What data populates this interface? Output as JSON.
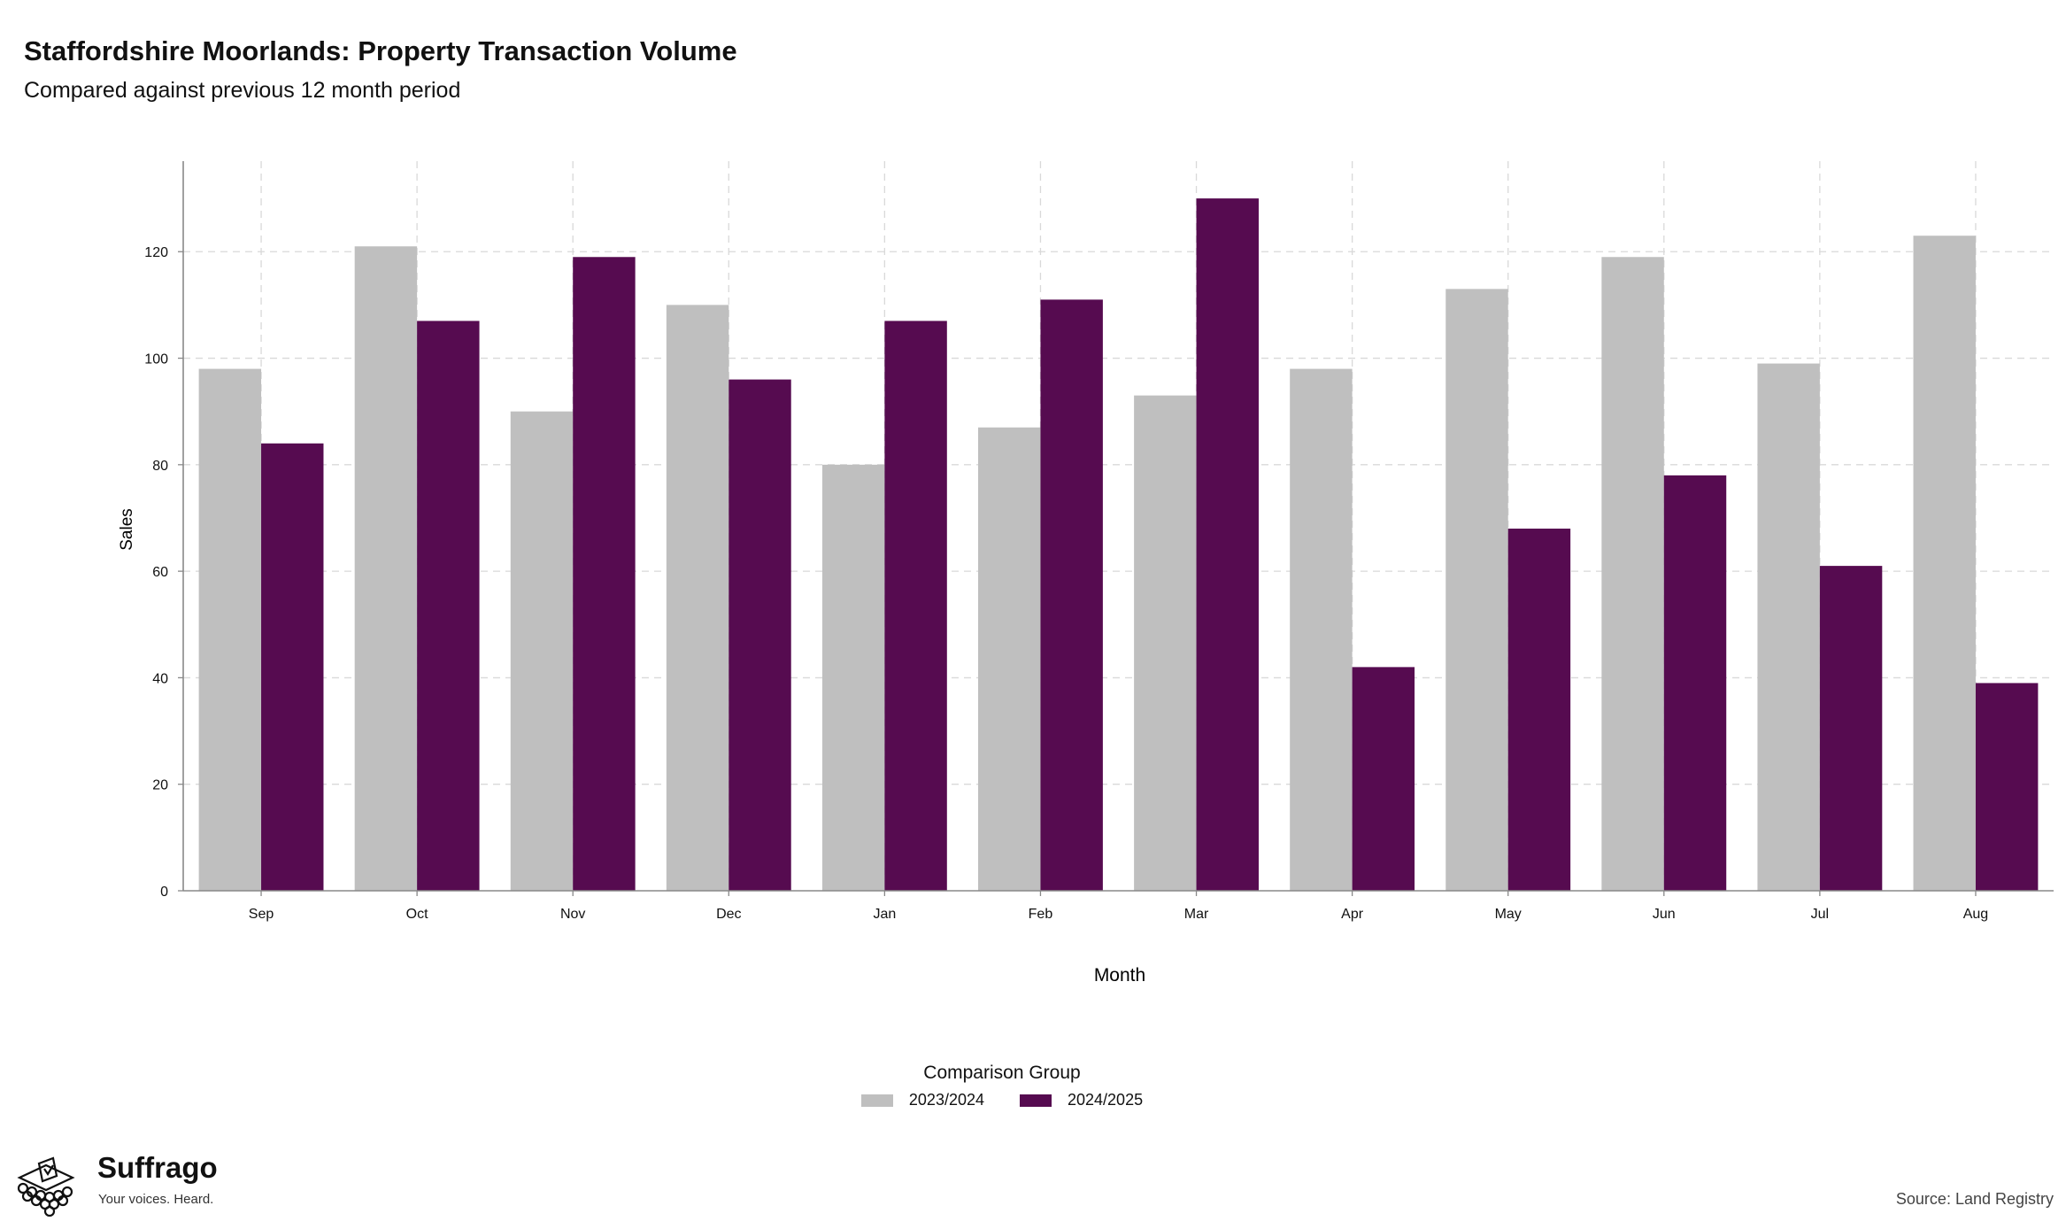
{
  "header": {
    "title": "Staffordshire Moorlands: Property Transaction Volume",
    "subtitle": "Compared against previous 12 month period"
  },
  "chart_data": {
    "type": "bar",
    "categories": [
      "Sep",
      "Oct",
      "Nov",
      "Dec",
      "Jan",
      "Feb",
      "Mar",
      "Apr",
      "May",
      "Jun",
      "Jul",
      "Aug"
    ],
    "series": [
      {
        "name": "2023/2024",
        "color": "#bfbfbf",
        "values": [
          98,
          121,
          90,
          110,
          80,
          87,
          93,
          98,
          113,
          119,
          99,
          123
        ]
      },
      {
        "name": "2024/2025",
        "color": "#560b50",
        "values": [
          84,
          107,
          119,
          96,
          107,
          111,
          130,
          42,
          68,
          78,
          61,
          39
        ]
      }
    ],
    "xlabel": "Month",
    "ylabel": "Sales",
    "ylim": [
      0,
      137
    ],
    "yticks": [
      0,
      20,
      40,
      60,
      80,
      100,
      120
    ],
    "grid": true,
    "legend_title": "Comparison Group",
    "legend_placement": "bottom"
  },
  "branding": {
    "name": "Suffrago",
    "tagline": "Your voices. Heard."
  },
  "footer": {
    "source": "Source: Land Registry"
  }
}
